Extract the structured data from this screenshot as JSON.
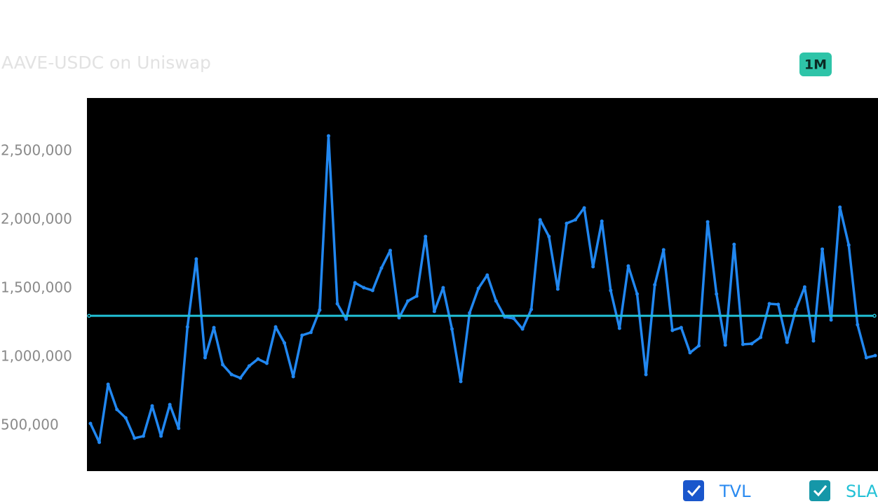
{
  "chart_data": {
    "type": "line",
    "title": "AAVE-USDC on Uniswap",
    "range_button": "1M",
    "ylim": [
      168000,
      2888000
    ],
    "yticks": [
      {
        "value": 500000,
        "label": "500,000"
      },
      {
        "value": 1000000,
        "label": "1,000,000"
      },
      {
        "value": 1500000,
        "label": "1,500,000"
      },
      {
        "value": 2000000,
        "label": "2,000,000"
      },
      {
        "value": 2500000,
        "label": "2,500,000"
      }
    ],
    "series": [
      {
        "name": "TVL",
        "color": "#2187f0",
        "values": [
          515000,
          378000,
          801000,
          617000,
          556000,
          408000,
          423000,
          643000,
          423000,
          653000,
          480000,
          1219000,
          1714000,
          995000,
          1214000,
          944000,
          872000,
          847000,
          934000,
          985000,
          954000,
          1219000,
          1102000,
          857000,
          1158000,
          1179000,
          1342000,
          2612000,
          1388000,
          1276000,
          1541000,
          1505000,
          1485000,
          1648000,
          1776000,
          1286000,
          1408000,
          1444000,
          1878000,
          1332000,
          1505000,
          1204000,
          821000,
          1321000,
          1500000,
          1597000,
          1408000,
          1291000,
          1281000,
          1204000,
          1347000,
          2000000,
          1878000,
          1495000,
          1974000,
          2000000,
          2087000,
          1658000,
          1990000,
          1485000,
          1209000,
          1663000,
          1459000,
          872000,
          1526000,
          1781000,
          1194000,
          1214000,
          1031000,
          1082000,
          1985000,
          1459000,
          1087000,
          1821000,
          1092000,
          1097000,
          1143000,
          1388000,
          1383000,
          1107000,
          1347000,
          1510000,
          1117000,
          1786000,
          1270000,
          2092000,
          1816000,
          1235000,
          995000,
          1010000
        ]
      }
    ],
    "reference_line": {
      "name": "SLA",
      "color": "#22c1d6",
      "value": 1300000
    }
  }
}
